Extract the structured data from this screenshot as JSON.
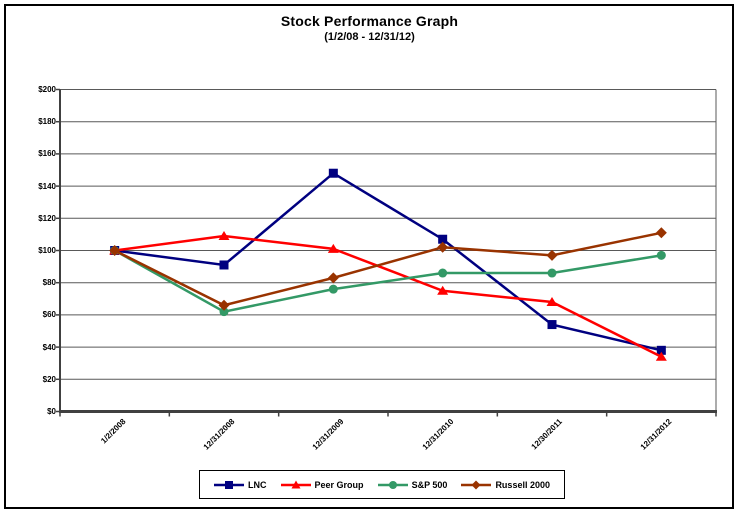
{
  "page": {
    "title": "Stock Performance Graph",
    "subtitle": "(1/2/08 - 12/31/12)"
  },
  "chart_data": {
    "type": "line",
    "title": "Stock Performance Graph",
    "subtitle": "(1/2/08 - 12/31/12)",
    "categories": [
      "1/2/2008",
      "12/31/2008",
      "12/31/2009",
      "12/31/2010",
      "12/30/2011",
      "12/31/2012"
    ],
    "series": [
      {
        "name": "LNC",
        "color": "#000080",
        "marker": "square",
        "values": [
          100,
          91,
          148,
          107,
          54,
          38
        ]
      },
      {
        "name": "Peer Group",
        "color": "#FF0000",
        "marker": "triangle",
        "values": [
          100,
          109,
          101,
          75,
          68,
          34
        ]
      },
      {
        "name": "S&P 500",
        "color": "#339966",
        "marker": "circle",
        "values": [
          100,
          62,
          76,
          86,
          86,
          97
        ]
      },
      {
        "name": "Russell 2000",
        "color": "#993300",
        "marker": "diamond",
        "values": [
          100,
          66,
          83,
          102,
          97,
          111
        ]
      }
    ],
    "y_axis": {
      "min": 0,
      "max": 200,
      "step": 20,
      "tick_prefix": "$",
      "tick_labels": [
        "$200",
        "$180",
        "$160",
        "$140",
        "$120",
        "$100",
        "$80",
        "$60",
        "$40",
        "$20",
        "$0"
      ]
    },
    "x_axis": {
      "tick_labels": [
        "1/2/2008",
        "12/31/2008",
        "12/31/2009",
        "12/31/2010",
        "12/30/2011",
        "12/31/2012"
      ]
    },
    "legend_position": "bottom",
    "grid": true,
    "colors": {
      "gridline": "#595959",
      "axis": "#404040",
      "background": "#ffffff",
      "border": "#000000"
    }
  }
}
